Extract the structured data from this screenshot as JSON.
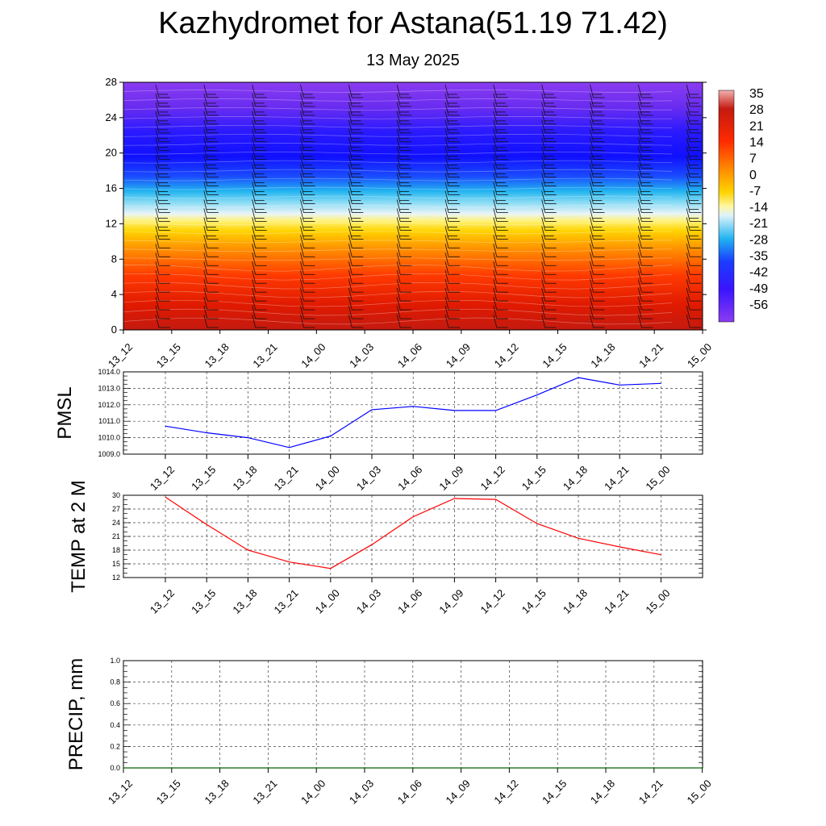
{
  "title": "Kazhydromet for Astana(51.19 71.42)",
  "subtitle": "13 May 2025",
  "chart_data": [
    {
      "type": "heatmap",
      "name": "vertical-cross-section",
      "x_labels": [
        "13_12",
        "13_15",
        "13_18",
        "13_21",
        "14_00",
        "14_03",
        "14_06",
        "14_09",
        "14_12",
        "14_15",
        "14_18",
        "14_21",
        "15_00"
      ],
      "y_ticks": [
        0,
        4,
        8,
        12,
        16,
        20,
        24,
        28
      ],
      "ylim": [
        0,
        28
      ],
      "colorbar_labels": [
        "35",
        "28",
        "21",
        "14",
        "7",
        "0",
        "-7",
        "-14",
        "-21",
        "-28",
        "-35",
        "-42",
        "-49",
        "-56"
      ],
      "colorbar_values": [
        35,
        28,
        21,
        14,
        7,
        0,
        -7,
        -14,
        -21,
        -28,
        -35,
        -42,
        -49,
        -56
      ],
      "colors": {
        "hot": "#c00000",
        "red": "#ff2a00",
        "orange": "#ff8c00",
        "yellow": "#ffee00",
        "pale": "#eaf2f8",
        "cyan": "#3ec8f0",
        "blue": "#1a1aff",
        "violet": "#8a2be2"
      }
    },
    {
      "type": "line",
      "name": "pmsl",
      "ylabel": "PMSL",
      "x": [
        "13_12",
        "13_15",
        "13_18",
        "13_21",
        "14_00",
        "14_03",
        "14_06",
        "14_09",
        "14_12",
        "14_15",
        "14_18",
        "14_21",
        "15_00"
      ],
      "values": [
        1010.7,
        1010.3,
        1010.0,
        1009.4,
        1010.1,
        1011.7,
        1011.9,
        1011.65,
        1011.65,
        1012.6,
        1013.65,
        1013.2,
        1013.3
      ],
      "y_ticks": [
        "1009.0",
        "1010.0",
        "1011.0",
        "1012.0",
        "1013.0",
        "1014.0"
      ],
      "ylim": [
        1009,
        1014
      ],
      "color": "#0000ff"
    },
    {
      "type": "line",
      "name": "temp-2m",
      "ylabel": "TEMP at 2 M",
      "x": [
        "13_12",
        "13_15",
        "13_18",
        "13_21",
        "14_00",
        "14_03",
        "14_06",
        "14_09",
        "14_12",
        "14_15",
        "14_18",
        "14_21",
        "15_00"
      ],
      "values": [
        29.6,
        23.6,
        18.0,
        15.4,
        14.0,
        19.2,
        25.3,
        29.3,
        29.1,
        23.8,
        20.6,
        18.7,
        17.0
      ],
      "y_ticks": [
        "12",
        "15",
        "18",
        "21",
        "24",
        "27",
        "30"
      ],
      "ylim": [
        12,
        30
      ],
      "color": "#ff0000"
    },
    {
      "type": "line",
      "name": "precip",
      "ylabel": "PRECIP, mm",
      "x": [
        "13_12",
        "13_15",
        "13_18",
        "13_21",
        "14_00",
        "14_03",
        "14_06",
        "14_09",
        "14_12",
        "14_15",
        "14_18",
        "14_21",
        "15_00"
      ],
      "values": [
        0,
        0,
        0,
        0,
        0,
        0,
        0,
        0,
        0,
        0,
        0,
        0,
        0
      ],
      "y_ticks": [
        "0.0",
        "0.2",
        "0.4",
        "0.6",
        "0.8",
        "1.0"
      ],
      "ylim": [
        0,
        1
      ],
      "color": "#006400"
    }
  ]
}
